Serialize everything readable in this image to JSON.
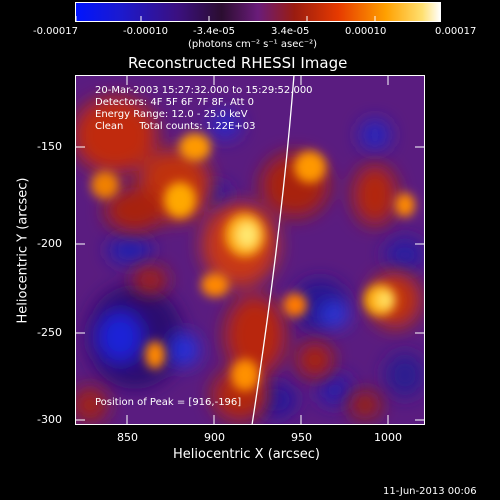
{
  "colorbar": {
    "tick_labels": [
      "-0.00017",
      "-0.00010",
      "-3.4e-05",
      "3.4e-05",
      "0.00010",
      "0.00017"
    ],
    "unit_label": "(photons cm⁻² s⁻¹ asec⁻²)",
    "stops": [
      "#0010ff",
      "#1020d0",
      "#3a1070",
      "#2a0c30",
      "#5a1a6e",
      "#8a1a10",
      "#e03000",
      "#ff9a00",
      "#ffd94a",
      "#ffffff"
    ]
  },
  "plot": {
    "title": "Reconstructed RHESSI Image",
    "x_label": "Heliocentric X (arcsec)",
    "y_label": "Heliocentric Y (arcsec)",
    "x_ticks": [
      "850",
      "900",
      "950",
      "1000"
    ],
    "y_ticks": [
      "-150",
      "-200",
      "-250",
      "-300"
    ],
    "info_lines": [
      "20-Mar-2003 15:27:32.000 to 15:29:52.000",
      "Detectors: 4F 5F 6F 7F 8F, Att 0",
      "Energy Range: 12.0 - 25.0 keV",
      "Clean     Total counts: 1.22E+03"
    ],
    "peak_label": "Position of Peak = [916,-196]"
  },
  "footer": {
    "date": "11-Jun-2013 00:06"
  }
}
